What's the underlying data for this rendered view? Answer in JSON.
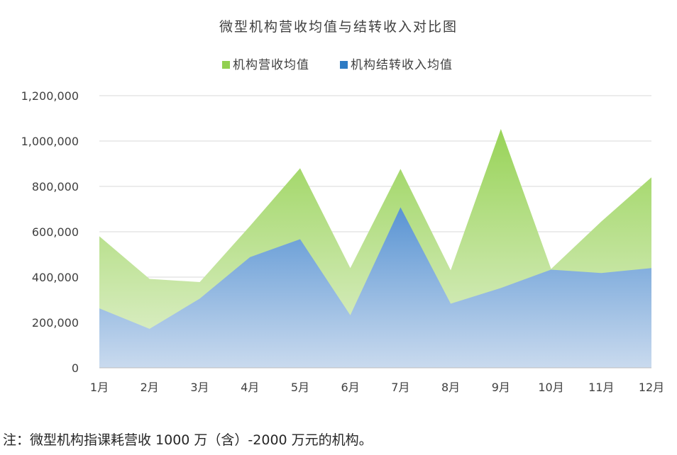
{
  "chart_data": {
    "type": "area",
    "title": "微型机构营收均值与结转收入对比图",
    "categories": [
      "1月",
      "2月",
      "3月",
      "4月",
      "5月",
      "6月",
      "7月",
      "8月",
      "9月",
      "10月",
      "11月",
      "12月"
    ],
    "series": [
      {
        "name": "机构营收均值",
        "color": "#92D050",
        "values": [
          580000,
          392000,
          378000,
          625000,
          880000,
          440000,
          877000,
          430000,
          1053000,
          436000,
          645000,
          840000
        ]
      },
      {
        "name": "机构结转收入均值",
        "color": "#2E7BC4",
        "values": [
          262000,
          172000,
          305000,
          488000,
          567000,
          232000,
          708000,
          283000,
          352000,
          433000,
          418000,
          440000
        ]
      }
    ],
    "ylim": [
      0,
      1200000
    ],
    "yticks": [
      "0",
      "200,000",
      "400,000",
      "600,000",
      "800,000",
      "1,000,000",
      "1,200,000"
    ],
    "ytick_values": [
      0,
      200000,
      400000,
      600000,
      800000,
      1000000,
      1200000
    ],
    "grid": true,
    "legend_position": "top"
  },
  "footnote": "注：微型机构指课耗营收 1000 万（含）-2000 万元的机构。"
}
